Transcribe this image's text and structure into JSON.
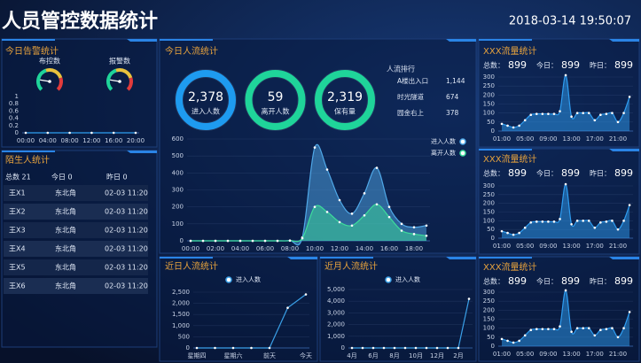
{
  "header": {
    "title": "人员管控数据统计",
    "datetime": "2018-03-14 19:50:07"
  },
  "alarm": {
    "title": "今日告警统计",
    "gauges": [
      "布控数",
      "报警数"
    ]
  },
  "stranger": {
    "title": "陌生人统计",
    "summary": [
      "总数 21",
      "今日 0",
      "昨日 0"
    ],
    "rows": [
      [
        "王X1",
        "东北角",
        "02-03 11:20"
      ],
      [
        "王X2",
        "东北角",
        "02-03 11:20"
      ],
      [
        "王X3",
        "东北角",
        "02-03 11:20"
      ],
      [
        "王X4",
        "东北角",
        "02-03 11:20"
      ],
      [
        "王X5",
        "东北角",
        "02-03 11:20"
      ],
      [
        "王X6",
        "东北角",
        "02-03 11:20"
      ]
    ]
  },
  "today": {
    "title": "今日人流统计",
    "rings": [
      {
        "value": 2378,
        "value_label": "2,378",
        "label": "进入人数",
        "color": "#1e9bf0"
      },
      {
        "value": 59,
        "value_label": "59",
        "label": "离开人数",
        "color": "#1fd49a"
      },
      {
        "value": 2319,
        "value_label": "2,319",
        "label": "保有量",
        "color": "#1fd49a"
      }
    ],
    "ranking": {
      "title": "人流排行",
      "items": [
        {
          "name": "A楼出入口",
          "count": "1,144"
        },
        {
          "name": "时光隧道",
          "count": "674"
        },
        {
          "name": "园金右上",
          "count": "378"
        }
      ]
    }
  },
  "recent_days": {
    "title": "近日人流统计"
  },
  "recent_months": {
    "title": "近月人流统计"
  },
  "traffic": [
    {
      "title": "XXX流量统计",
      "stats": [
        {
          "label": "总数：",
          "value": "899"
        },
        {
          "label": "今日：",
          "value": "899"
        },
        {
          "label": "昨日：",
          "value": "899"
        }
      ]
    },
    {
      "title": "XXX流量统计",
      "stats": [
        {
          "label": "总数：",
          "value": "899"
        },
        {
          "label": "今日：",
          "value": "899"
        },
        {
          "label": "昨日：",
          "value": "899"
        }
      ]
    },
    {
      "title": "XXX流量统计",
      "stats": [
        {
          "label": "总数：",
          "value": "899"
        },
        {
          "label": "今日：",
          "value": "899"
        },
        {
          "label": "昨日：",
          "value": "899"
        }
      ]
    }
  ],
  "chart_data": [
    {
      "type": "line",
      "categories": [
        "00:00",
        "04:00",
        "08:00",
        "12:00",
        "16:00",
        "20:00"
      ],
      "values": [
        0,
        0,
        0,
        0,
        0,
        0
      ],
      "color": "#2ea0f0",
      "ylim": [
        0,
        1
      ],
      "yticks": [
        0,
        0.2,
        0.4,
        0.6,
        0.8,
        1
      ],
      "grid": false
    },
    {
      "type": "area",
      "smooth": true,
      "categories": [
        "00:00",
        null,
        "02:00",
        null,
        "04:00",
        null,
        "06:00",
        null,
        "08:00",
        null,
        "10:00",
        null,
        "12:00",
        null,
        "14:00",
        null,
        "16:00",
        null,
        "18:00",
        null
      ],
      "series": [
        {
          "name": "进入人数",
          "color": "#4fa8e8",
          "values": [
            0,
            0,
            0,
            0,
            0,
            0,
            0,
            0,
            2,
            20,
            550,
            420,
            240,
            160,
            280,
            430,
            200,
            100,
            80,
            90
          ]
        },
        {
          "name": "离开人数",
          "color": "#3ddc9b",
          "values": [
            0,
            0,
            0,
            0,
            0,
            0,
            0,
            0,
            1,
            15,
            200,
            170,
            110,
            90,
            150,
            215,
            140,
            60,
            40,
            30
          ]
        }
      ],
      "ylim": [
        0,
        600
      ],
      "yticks": [
        0,
        100,
        200,
        300,
        400,
        500,
        600
      ],
      "grid": true,
      "legend": "top-right"
    },
    {
      "type": "line",
      "categories": [
        "星期四",
        null,
        "星期六",
        null,
        "前天",
        null,
        "今天"
      ],
      "series": [
        {
          "name": "进入人数",
          "color": "#3aa0e8",
          "values": [
            0,
            0,
            0,
            0,
            0,
            1800,
            2400
          ]
        }
      ],
      "ylim": [
        0,
        2500
      ],
      "yticks": [
        0,
        500,
        {
          "value": 1000,
          "label": "1,000"
        },
        {
          "value": 1500,
          "label": "1,500"
        },
        {
          "value": 2000,
          "label": "2,000"
        },
        {
          "value": 2500,
          "label": "2,500"
        }
      ],
      "grid": true,
      "legend": "top"
    },
    {
      "type": "line",
      "categories": [
        "4月",
        null,
        "6月",
        null,
        "8月",
        null,
        "10月",
        null,
        "12月",
        null,
        "2月",
        null
      ],
      "series": [
        {
          "name": "进入人数",
          "color": "#3aa0e8",
          "values": [
            0,
            0,
            0,
            0,
            0,
            0,
            0,
            0,
            0,
            0,
            0,
            4200
          ]
        }
      ],
      "ylim": [
        0,
        5000
      ],
      "yticks": [
        0,
        {
          "value": 1000,
          "label": "1,000"
        },
        {
          "value": 2000,
          "label": "2,000"
        },
        {
          "value": 3000,
          "label": "3,000"
        },
        {
          "value": 4000,
          "label": "4,000"
        },
        {
          "value": 5000,
          "label": "5,000"
        }
      ],
      "grid": true,
      "legend": "top"
    },
    {
      "type": "area",
      "smooth": true,
      "categories": [
        "01:00",
        null,
        null,
        null,
        "05:00",
        null,
        null,
        null,
        "09:00",
        null,
        null,
        null,
        "13:00",
        null,
        null,
        null,
        "17:00",
        null,
        null,
        null,
        "21:00",
        null,
        null
      ],
      "values": [
        40,
        30,
        20,
        30,
        60,
        90,
        95,
        95,
        95,
        95,
        110,
        310,
        80,
        100,
        100,
        100,
        60,
        90,
        95,
        100,
        50,
        100,
        190
      ],
      "color": "#2e9cf0",
      "ylim": [
        0,
        300
      ],
      "yticks": [
        0,
        50,
        100,
        150,
        200,
        250,
        300
      ],
      "grid": true
    },
    {
      "type": "area",
      "smooth": true,
      "categories": [
        "01:00",
        null,
        null,
        null,
        "05:00",
        null,
        null,
        null,
        "09:00",
        null,
        null,
        null,
        "13:00",
        null,
        null,
        null,
        "17:00",
        null,
        null,
        null,
        "21:00",
        null,
        null
      ],
      "values": [
        40,
        30,
        20,
        30,
        60,
        90,
        95,
        95,
        95,
        95,
        110,
        310,
        80,
        100,
        100,
        100,
        60,
        90,
        95,
        100,
        50,
        100,
        190
      ],
      "color": "#2e9cf0",
      "ylim": [
        0,
        300
      ],
      "yticks": [
        0,
        50,
        100,
        150,
        200,
        250,
        300
      ],
      "grid": true
    },
    {
      "type": "area",
      "smooth": true,
      "categories": [
        "01:00",
        null,
        null,
        null,
        "05:00",
        null,
        null,
        null,
        "09:00",
        null,
        null,
        null,
        "13:00",
        null,
        null,
        null,
        "17:00",
        null,
        null,
        null,
        "21:00",
        null,
        null
      ],
      "values": [
        40,
        30,
        20,
        30,
        60,
        90,
        95,
        95,
        95,
        95,
        110,
        310,
        80,
        100,
        100,
        100,
        60,
        90,
        95,
        100,
        50,
        100,
        190
      ],
      "color": "#2e9cf0",
      "ylim": [
        0,
        300
      ],
      "yticks": [
        0,
        50,
        100,
        150,
        200,
        250,
        300
      ],
      "grid": true
    }
  ]
}
